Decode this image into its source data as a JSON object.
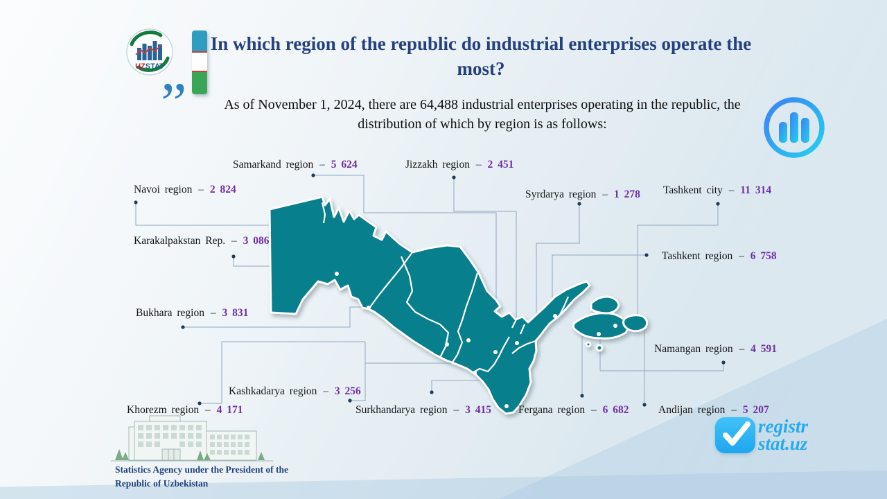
{
  "header": {
    "title": "In which region of the republic do industrial enterprises operate the most?",
    "subtitle": "As of November 1, 2024, there are 64,488 industrial enterprises operating in the republic, the distribution of which by region is as follows:",
    "quote_glyph": "”",
    "logo": {
      "uz": "UZ",
      "stat": "STAT"
    }
  },
  "separator": "–",
  "map_labels": [
    {
      "id": "samarkand",
      "name": "Samarkand region",
      "value": "5 624"
    },
    {
      "id": "jizzakh",
      "name": "Jizzakh region",
      "value": "2 451"
    },
    {
      "id": "navoi",
      "name": "Navoi region",
      "value": "2 824"
    },
    {
      "id": "syrdarya",
      "name": "Syrdarya region",
      "value": "1 278"
    },
    {
      "id": "tashkent_city",
      "name": "Tashkent city",
      "value": "11 314"
    },
    {
      "id": "karakalpakstan",
      "name": "Karakalpakstan Rep.",
      "value": "3 086"
    },
    {
      "id": "tashkent_region",
      "name": "Tashkent region",
      "value": "6 758"
    },
    {
      "id": "bukhara",
      "name": "Bukhara region",
      "value": "3 831"
    },
    {
      "id": "namangan",
      "name": "Namangan region",
      "value": "4 591"
    },
    {
      "id": "kashkadarya",
      "name": "Kashkadarya region",
      "value": "3 256"
    },
    {
      "id": "khorezm",
      "name": "Khorezm region",
      "value": "4 171"
    },
    {
      "id": "surkhandarya",
      "name": "Surkhandarya region",
      "value": "3 415"
    },
    {
      "id": "fergana",
      "name": "Fergana region",
      "value": "6 682"
    },
    {
      "id": "andijan",
      "name": "Andijan region",
      "value": "5 207"
    }
  ],
  "footer": {
    "agency": "Statistics Agency under the President of the Republic of Uzbekistan",
    "brand_line1": "registr",
    "brand_line2": "stat.uz"
  },
  "chart_data": {
    "type": "table",
    "title": "In which region of the republic do industrial enterprises operate the most?",
    "note": "As of November 1, 2024, there are 64,488 industrial enterprises operating in the republic",
    "total": 64488,
    "unit": "industrial enterprises",
    "categories": [
      "Karakalpakstan Rep.",
      "Khorezm region",
      "Navoi region",
      "Bukhara region",
      "Samarkand region",
      "Kashkadarya region",
      "Surkhandarya region",
      "Jizzakh region",
      "Syrdarya region",
      "Tashkent region",
      "Tashkent city",
      "Namangan region",
      "Fergana region",
      "Andijan region"
    ],
    "values": [
      3086,
      4171,
      2824,
      3831,
      5624,
      3256,
      3415,
      2451,
      1278,
      6758,
      11314,
      4591,
      6682,
      5207
    ]
  },
  "colors": {
    "map_fill": "#087f8c",
    "value_text": "#7030a0",
    "title_text": "#24417e",
    "callout_line": "#8fa6c0",
    "brand_cyan": "#25aaf0"
  }
}
